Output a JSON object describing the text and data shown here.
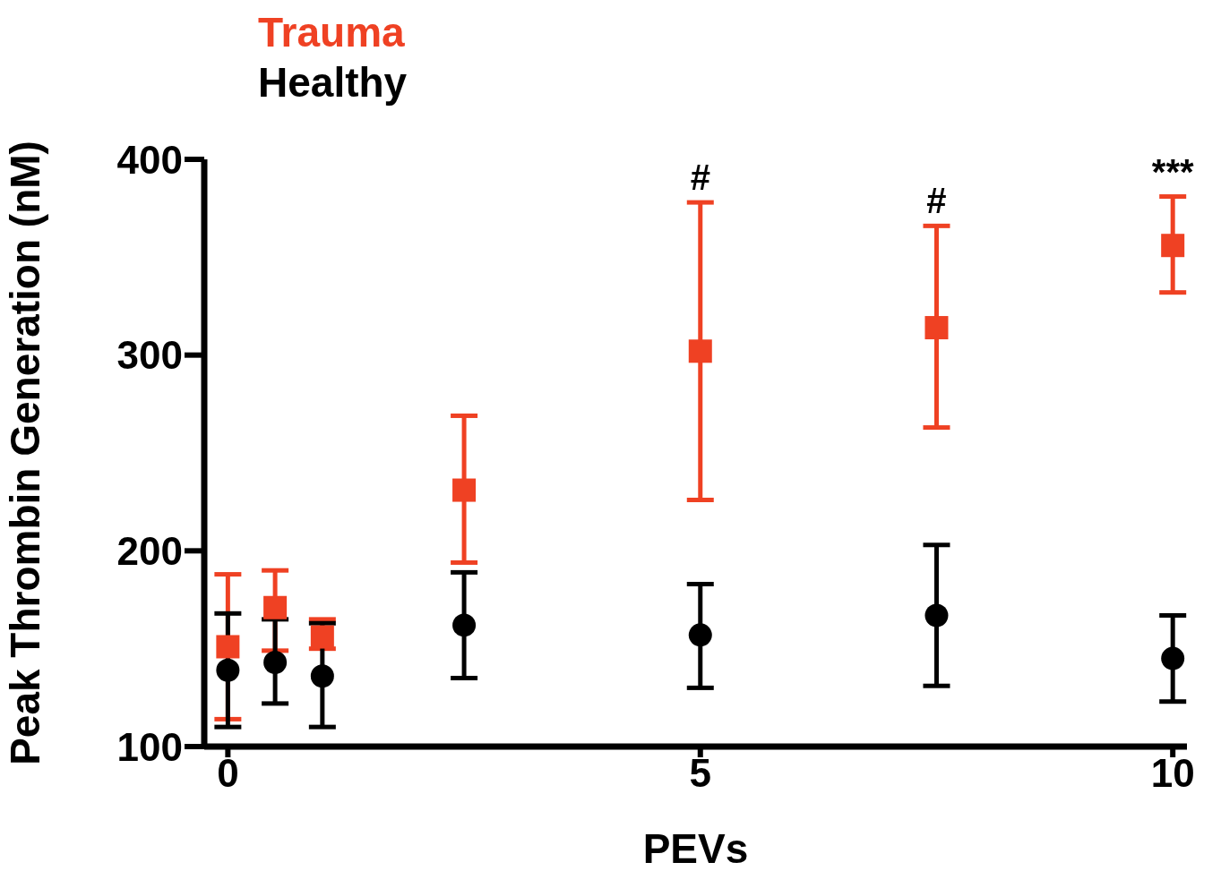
{
  "chart_data": {
    "type": "scatter",
    "xlabel": "PEVs",
    "ylabel": "Peak Thrombin Generation (nM)",
    "x": [
      0,
      0.5,
      1,
      2.5,
      5,
      7.5,
      10
    ],
    "series": [
      {
        "name": "Trauma",
        "color": "#ef4123",
        "marker": "square",
        "values": [
          151,
          171,
          156,
          231,
          302,
          314,
          356
        ],
        "errors": [
          [
            114,
            188
          ],
          [
            149,
            190
          ],
          [
            150,
            165
          ],
          [
            194,
            269
          ],
          [
            226,
            378
          ],
          [
            263,
            366
          ],
          [
            332,
            381
          ]
        ]
      },
      {
        "name": "Healthy",
        "color": "#000000",
        "marker": "circle",
        "values": [
          139,
          143,
          136,
          162,
          157,
          167,
          145
        ],
        "errors": [
          [
            110,
            168
          ],
          [
            122,
            165
          ],
          [
            110,
            163
          ],
          [
            135,
            189
          ],
          [
            130,
            183
          ],
          [
            131,
            203
          ],
          [
            123,
            167
          ]
        ]
      }
    ],
    "xlim": [
      -0.25,
      10.15
    ],
    "xticks": [
      0,
      5,
      10
    ],
    "ylim": [
      100,
      400
    ],
    "yticks": [
      100,
      200,
      300,
      400
    ],
    "annotations": [
      {
        "text": "#",
        "x": 5,
        "y": 378
      },
      {
        "text": "#",
        "x": 7.5,
        "y": 366
      },
      {
        "text": "***",
        "x": 10,
        "y": 381
      }
    ],
    "legend": "top left",
    "grid": false
  }
}
